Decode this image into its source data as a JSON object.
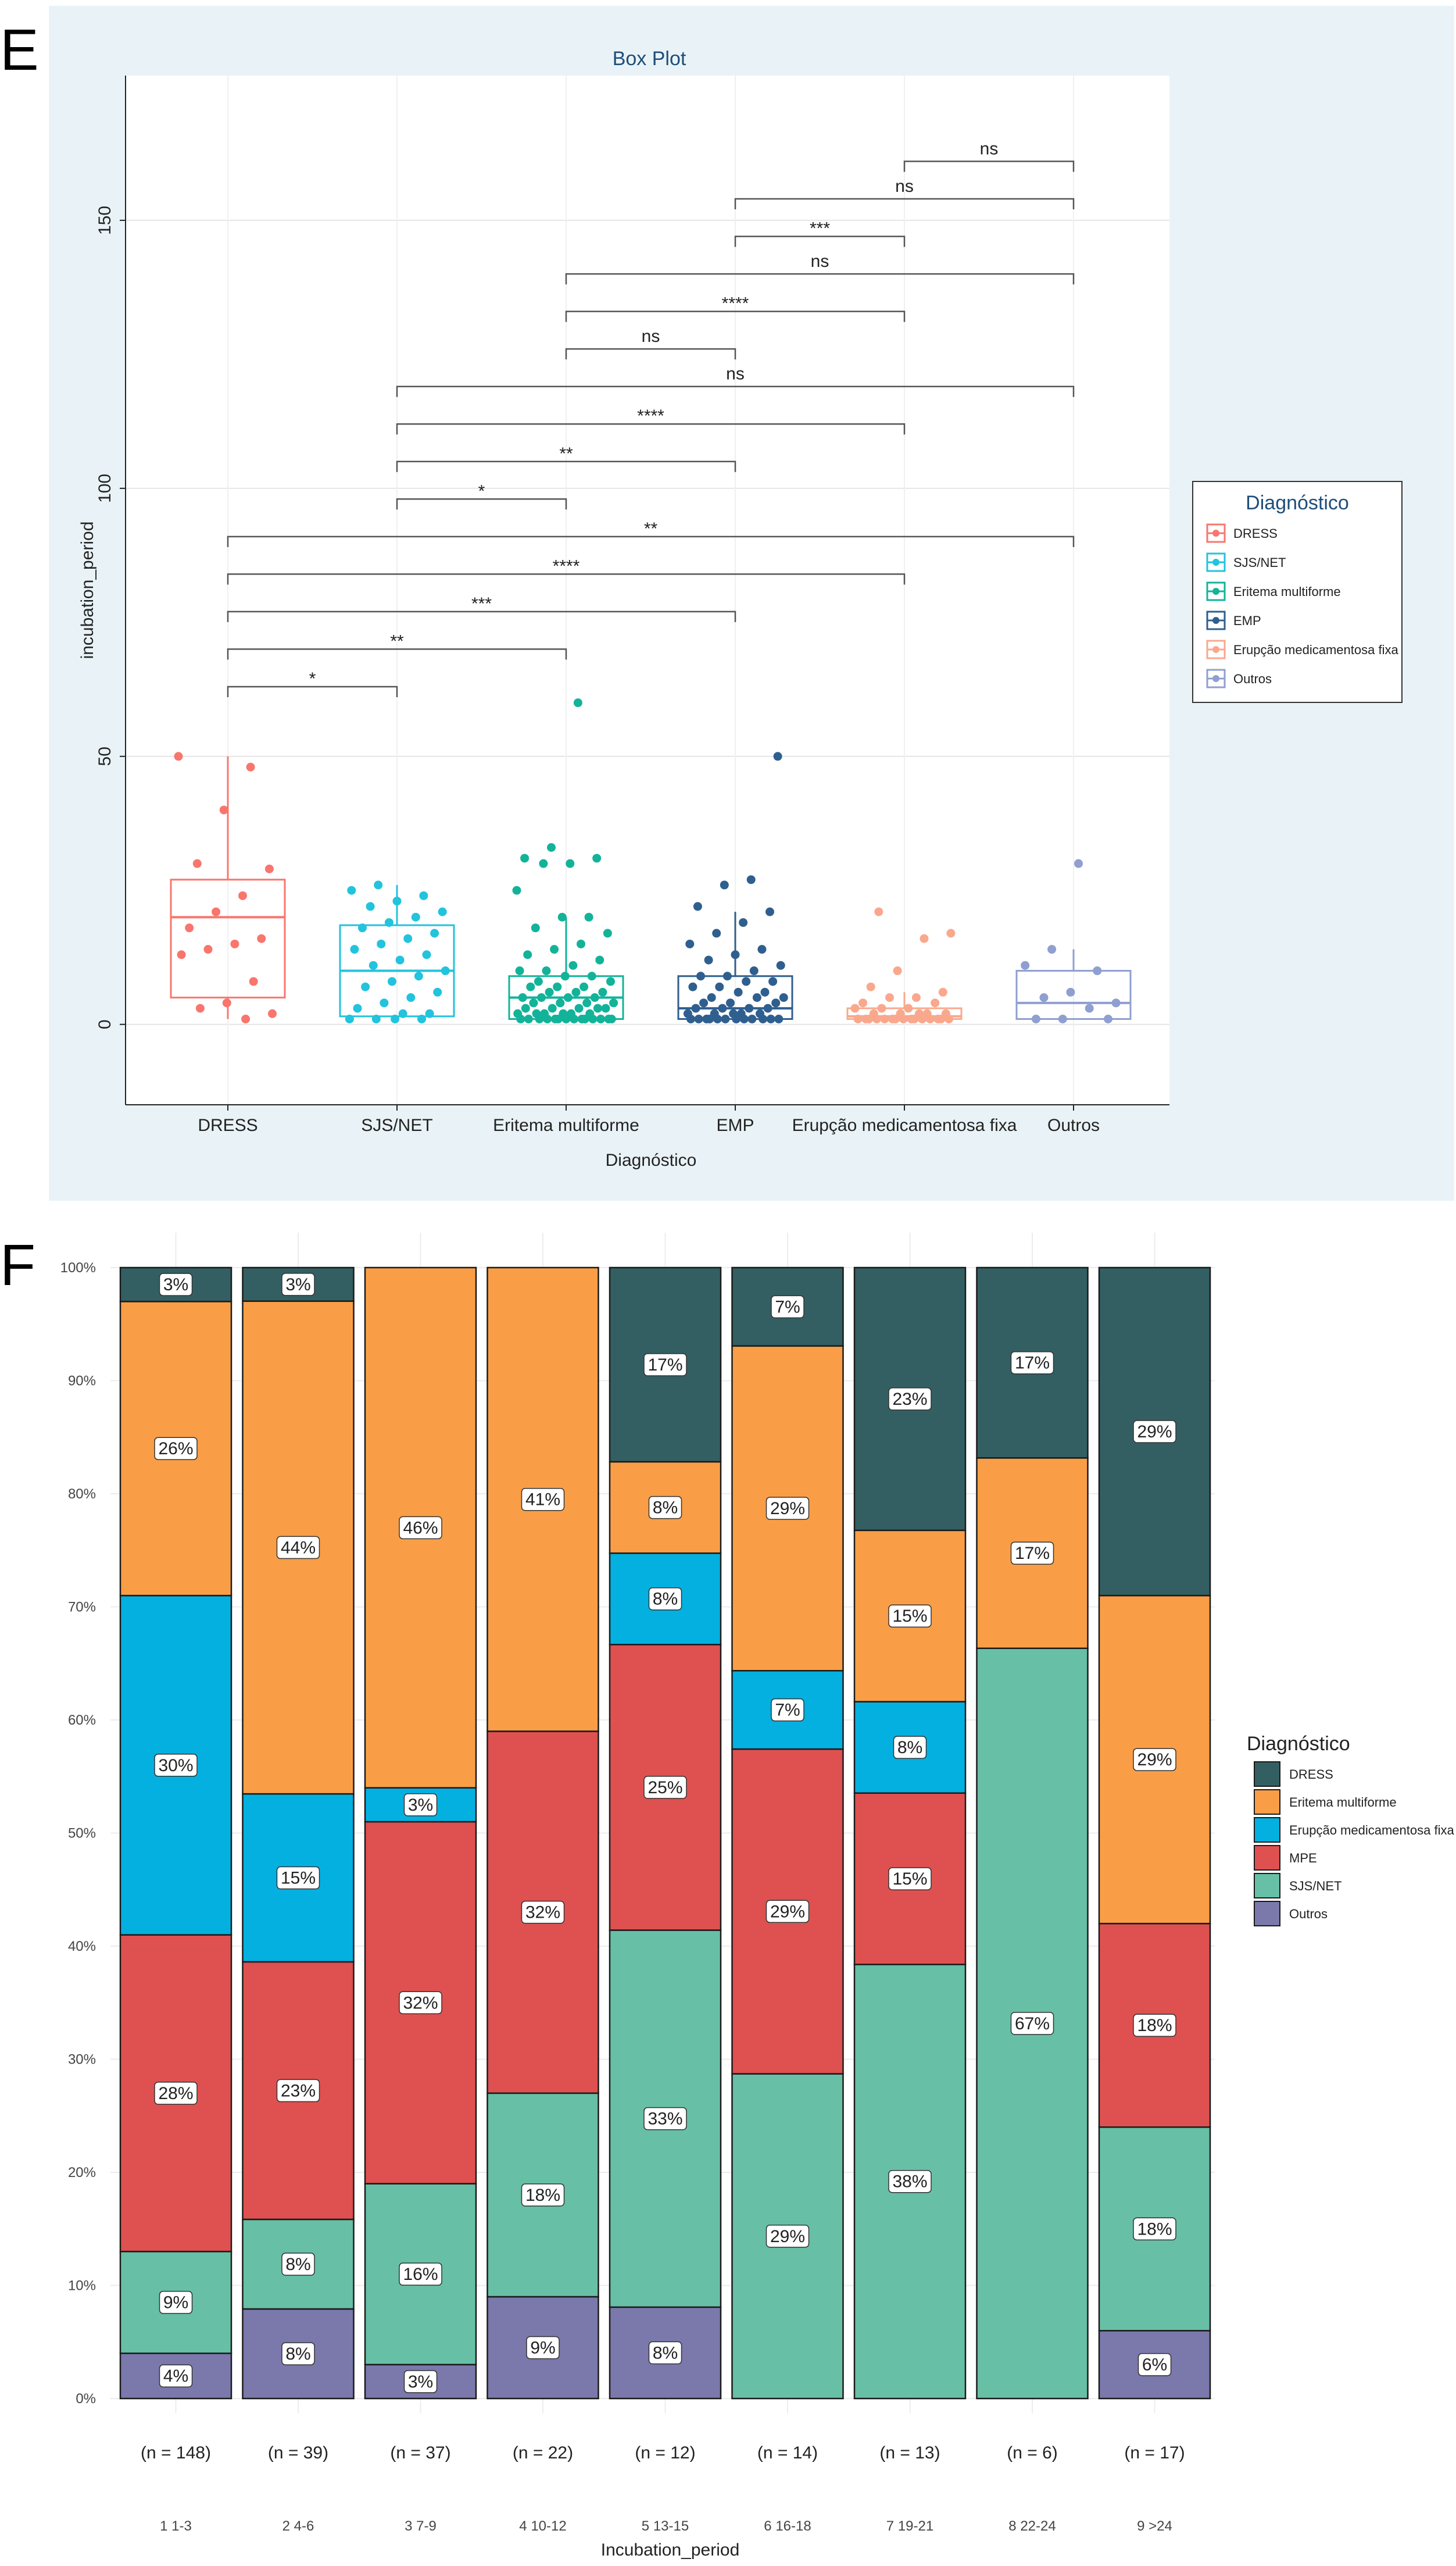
{
  "panel_e": {
    "letter": "E",
    "colors": {
      "background": "#e9f3f7",
      "plot_bg": "#ffffff",
      "DRESS": "#f8766d",
      "SJS/NET": "#22c3dd",
      "Eritema multiforme": "#13b39a",
      "EMP": "#2f5f8f",
      "Erupção medicamentosa fixa": "#f9a88d",
      "Outros": "#8f9fd0"
    }
  },
  "panel_f": {
    "letter": "F",
    "colors": {
      "DRESS": "#335f63",
      "Eritema multiforme": "#f99e47",
      "Erupção medicamentosa fixa": "#04b0e0",
      "MPE": "#de5150",
      "SJS/NET": "#67bfa6",
      "Outros": "#7b78ac"
    }
  },
  "chart_data": [
    {
      "type": "box",
      "title": "Box Plot",
      "xlabel": "Diagnóstico",
      "ylabel": "incubation_period",
      "ylim": [
        -15,
        177
      ],
      "yticks": [
        0,
        50,
        100,
        150
      ],
      "grid": true,
      "legend": {
        "title": "Diagnóstico",
        "position": "right",
        "entries": [
          "DRESS",
          "SJS/NET",
          "Eritema multiforme",
          "EMP",
          "Erupção medicamentosa fixa",
          "Outros"
        ]
      },
      "categories": [
        "DRESS",
        "SJS/NET",
        "Eritema multiforme",
        "EMP",
        "Erupção medicamentosa fixa",
        "Outros"
      ],
      "boxes": [
        {
          "name": "DRESS",
          "q1": 5,
          "median": 20,
          "q3": 27,
          "whisker_low": 1,
          "whisker_high": 50
        },
        {
          "name": "SJS/NET",
          "q1": 1.5,
          "median": 10,
          "q3": 18.5,
          "whisker_low": 1,
          "whisker_high": 26
        },
        {
          "name": "Eritema multiforme",
          "q1": 1,
          "median": 5,
          "q3": 9,
          "whisker_low": 1,
          "whisker_high": 20
        },
        {
          "name": "EMP",
          "q1": 1,
          "median": 3,
          "q3": 9,
          "whisker_low": 1,
          "whisker_high": 21
        },
        {
          "name": "Erupção medicamentosa fixa",
          "q1": 1,
          "median": 1.5,
          "q3": 3,
          "whisker_low": 1,
          "whisker_high": 6
        },
        {
          "name": "Outros",
          "q1": 1,
          "median": 4,
          "q3": 10,
          "whisker_low": 1,
          "whisker_high": 14
        }
      ],
      "points": {
        "DRESS": [
          50,
          48,
          40,
          30,
          29,
          24,
          21,
          18,
          16,
          15,
          14,
          13,
          8,
          4,
          3,
          2,
          1
        ],
        "SJS/NET": [
          26,
          25,
          24,
          23,
          22,
          21,
          20,
          19,
          18,
          17,
          16,
          15,
          14,
          13,
          12,
          11,
          10,
          9,
          8,
          7,
          6,
          5,
          4,
          3,
          2,
          2,
          1,
          1,
          1,
          1
        ],
        "Eritema multiforme": [
          60,
          33,
          31,
          31,
          30,
          30,
          25,
          20,
          20,
          18,
          17,
          15,
          14,
          13,
          12,
          11,
          10,
          10,
          9,
          9,
          8,
          8,
          7,
          7,
          7,
          6,
          6,
          6,
          5,
          5,
          5,
          5,
          4,
          4,
          4,
          4,
          3,
          3,
          3,
          3,
          3,
          2,
          2,
          2,
          2,
          2,
          2,
          1,
          1,
          1,
          1,
          1,
          1,
          1,
          1,
          1,
          1,
          1,
          1,
          1,
          1
        ],
        "EMP": [
          50,
          27,
          26,
          22,
          21,
          19,
          17,
          15,
          14,
          13,
          12,
          11,
          10,
          9,
          9,
          8,
          8,
          7,
          7,
          6,
          6,
          5,
          5,
          5,
          4,
          4,
          4,
          3,
          3,
          3,
          3,
          2,
          2,
          2,
          2,
          2,
          1,
          1,
          1,
          1,
          1,
          1,
          1,
          1,
          1,
          1,
          1,
          1
        ],
        "Erupção medicamentosa fixa": [
          21,
          17,
          16,
          10,
          7,
          6,
          5,
          5,
          4,
          4,
          3,
          3,
          3,
          2,
          2,
          2,
          2,
          2,
          1,
          1,
          1,
          1,
          1,
          1,
          1,
          1,
          1,
          1,
          1,
          1,
          1,
          1,
          1
        ],
        "Outros": [
          30,
          14,
          11,
          10,
          6,
          5,
          4,
          3,
          1,
          1,
          1
        ]
      },
      "comparisons": [
        {
          "from": "Erupção medicamentosa fixa",
          "to": "Outros",
          "y": 161,
          "label": "ns"
        },
        {
          "from": "EMP",
          "to": "Outros",
          "y": 154,
          "label": "ns"
        },
        {
          "from": "EMP",
          "to": "Erupção medicamentosa fixa",
          "y": 147,
          "label": "***"
        },
        {
          "from": "Eritema multiforme",
          "to": "Outros",
          "y": 140,
          "label": "ns"
        },
        {
          "from": "Eritema multiforme",
          "to": "Erupção medicamentosa fixa",
          "y": 133,
          "label": "****"
        },
        {
          "from": "Eritema multiforme",
          "to": "EMP",
          "y": 126,
          "label": "ns"
        },
        {
          "from": "SJS/NET",
          "to": "Outros",
          "y": 119,
          "label": "ns"
        },
        {
          "from": "SJS/NET",
          "to": "Erupção medicamentosa fixa",
          "y": 112,
          "label": "****"
        },
        {
          "from": "SJS/NET",
          "to": "EMP",
          "y": 105,
          "label": "**"
        },
        {
          "from": "SJS/NET",
          "to": "Eritema multiforme",
          "y": 98,
          "label": "*"
        },
        {
          "from": "DRESS",
          "to": "Outros",
          "y": 91,
          "label": "**"
        },
        {
          "from": "DRESS",
          "to": "Erupção medicamentosa fixa",
          "y": 84,
          "label": "****"
        },
        {
          "from": "DRESS",
          "to": "EMP",
          "y": 77,
          "label": "***"
        },
        {
          "from": "DRESS",
          "to": "Eritema multiforme",
          "y": 70,
          "label": "**"
        },
        {
          "from": "DRESS",
          "to": "SJS/NET",
          "y": 63,
          "label": "*"
        }
      ]
    },
    {
      "type": "bar",
      "stacked": true,
      "percent": true,
      "title": "",
      "xlabel": "Incubation_period",
      "ylabel": "",
      "ylim": [
        0,
        100
      ],
      "yticks": [
        "0%",
        "10%",
        "20%",
        "30%",
        "40%",
        "50%",
        "60%",
        "70%",
        "80%",
        "90%",
        "100%"
      ],
      "grid": true,
      "legend": {
        "title": "Diagnóstico",
        "position": "right",
        "entries": [
          "DRESS",
          "Eritema multiforme",
          "Erupção medicamentosa fixa",
          "MPE",
          "SJS/NET",
          "Outros"
        ]
      },
      "categories": [
        "1 1-3",
        "2 4-6",
        "3 7-9",
        "4 10-12",
        "5 13-15",
        "6 16-18",
        "7 19-21",
        "8 22-24",
        "9 >24"
      ],
      "counts": [
        "(n = 148)",
        "(n = 39)",
        "(n = 37)",
        "(n = 22)",
        "(n = 12)",
        "(n = 14)",
        "(n = 13)",
        "(n = 6)",
        "(n = 17)"
      ],
      "stack_order": [
        "Outros",
        "SJS/NET",
        "MPE",
        "Erupção medicamentosa fixa",
        "Eritema multiforme",
        "DRESS"
      ],
      "series": [
        {
          "name": "Outros",
          "values": [
            4,
            8,
            3,
            9,
            8,
            0,
            0,
            0,
            6
          ],
          "labels": [
            "4%",
            "8%",
            "3%",
            "9%",
            "8%",
            "",
            "",
            "",
            "6%"
          ]
        },
        {
          "name": "SJS/NET",
          "values": [
            9,
            8,
            16,
            18,
            33,
            29,
            38,
            67,
            18
          ],
          "labels": [
            "9%",
            "8%",
            "16%",
            "18%",
            "33%",
            "29%",
            "38%",
            "67%",
            "18%"
          ]
        },
        {
          "name": "MPE",
          "values": [
            28,
            23,
            32,
            32,
            25,
            29,
            15,
            0,
            18
          ],
          "labels": [
            "28%",
            "23%",
            "32%",
            "32%",
            "25%",
            "29%",
            "15%",
            "",
            "18%"
          ]
        },
        {
          "name": "Erupção medicamentosa fixa",
          "values": [
            30,
            15,
            3,
            0,
            8,
            7,
            8,
            0,
            0
          ],
          "labels": [
            "30%",
            "15%",
            "3%",
            "",
            "8%",
            "7%",
            "8%",
            "",
            ""
          ]
        },
        {
          "name": "Eritema multiforme",
          "values": [
            26,
            44,
            46,
            41,
            8,
            29,
            15,
            17,
            29
          ],
          "labels": [
            "26%",
            "44%",
            "46%",
            "41%",
            "8%",
            "29%",
            "15%",
            "17%",
            "29%"
          ]
        },
        {
          "name": "DRESS",
          "values": [
            3,
            3,
            0,
            0,
            17,
            7,
            23,
            17,
            29
          ],
          "labels": [
            "3%",
            "3%",
            "",
            "",
            "17%",
            "7%",
            "23%",
            "17%",
            "29%"
          ]
        }
      ]
    }
  ]
}
